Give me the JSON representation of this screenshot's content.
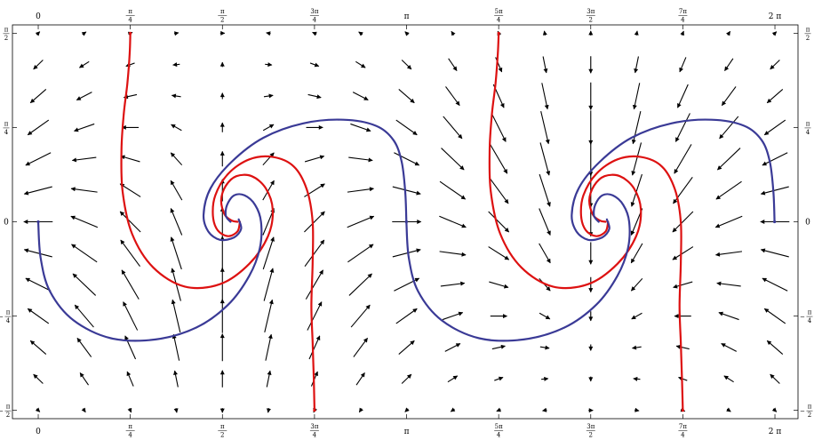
{
  "chart_data": {
    "type": "vector-field-streamplot",
    "title": "",
    "xlabel": "",
    "ylabel": "",
    "xlim": [
      -0.22,
      6.48
    ],
    "ylim": [
      -1.64,
      1.64
    ],
    "grid": false,
    "frame": "box-with-ticks-all-sides",
    "x_ticks": [
      {
        "value": 0,
        "num": "0",
        "den": ""
      },
      {
        "value": 0.7854,
        "num": "π",
        "den": "4"
      },
      {
        "value": 1.5708,
        "num": "π",
        "den": "2"
      },
      {
        "value": 2.3562,
        "num": "3π",
        "den": "4"
      },
      {
        "value": 3.1416,
        "num": "π",
        "den": ""
      },
      {
        "value": 3.927,
        "num": "5π",
        "den": "4"
      },
      {
        "value": 4.7124,
        "num": "3π",
        "den": "2"
      },
      {
        "value": 5.4978,
        "num": "7π",
        "den": "4"
      },
      {
        "value": 6.2832,
        "num": "2 π",
        "den": ""
      }
    ],
    "y_ticks": [
      {
        "value": 1.5708,
        "num": "π",
        "den": "2",
        "sign": ""
      },
      {
        "value": 0.7854,
        "num": "π",
        "den": "4",
        "sign": ""
      },
      {
        "value": 0,
        "num": "0",
        "den": "",
        "sign": ""
      },
      {
        "value": -0.7854,
        "num": "π",
        "den": "4",
        "sign": "−"
      },
      {
        "value": -1.5708,
        "num": "π",
        "den": "2",
        "sign": "−"
      }
    ],
    "field": {
      "x_start": 0,
      "x_step": 0.3927,
      "x_count": 17,
      "y_start": -1.5708,
      "y_step": 0.2618,
      "y_count": 13,
      "arrow_color": "#000000"
    },
    "curves": [
      {
        "color": "#dd1111",
        "points": [
          [
            0.7854,
            1.5708
          ],
          [
            0.78,
            1.4
          ],
          [
            0.76,
            1.15
          ],
          [
            0.73,
            0.9
          ],
          [
            0.71,
            0.6
          ],
          [
            0.72,
            0.25
          ],
          [
            0.8,
            -0.1
          ],
          [
            0.98,
            -0.38
          ],
          [
            1.25,
            -0.54
          ],
          [
            1.55,
            -0.52
          ],
          [
            1.8,
            -0.35
          ],
          [
            1.96,
            -0.12
          ],
          [
            2.0,
            0.1
          ],
          [
            1.94,
            0.28
          ],
          [
            1.82,
            0.38
          ],
          [
            1.69,
            0.38
          ],
          [
            1.6,
            0.3
          ],
          [
            1.56,
            0.18
          ],
          [
            1.59,
            0.06
          ],
          [
            1.65,
            0.01
          ],
          [
            1.7,
            0.0
          ]
        ]
      },
      {
        "color": "#dd1111",
        "points": [
          [
            2.3562,
            -1.5708
          ],
          [
            2.35,
            -1.3
          ],
          [
            2.34,
            -1.0
          ],
          [
            2.33,
            -0.7
          ],
          [
            2.34,
            -0.35
          ],
          [
            2.34,
            0.0
          ],
          [
            2.29,
            0.27
          ],
          [
            2.18,
            0.46
          ],
          [
            2.0,
            0.54
          ],
          [
            1.8,
            0.52
          ],
          [
            1.62,
            0.4
          ],
          [
            1.51,
            0.22
          ],
          [
            1.49,
            0.05
          ],
          [
            1.53,
            -0.07
          ],
          [
            1.62,
            -0.12
          ],
          [
            1.7,
            -0.08
          ],
          [
            1.72,
            0.0
          ]
        ]
      },
      {
        "color": "#dd1111",
        "points": [
          [
            3.927,
            1.5708
          ],
          [
            3.92,
            1.4
          ],
          [
            3.9,
            1.15
          ],
          [
            3.87,
            0.9
          ],
          [
            3.85,
            0.6
          ],
          [
            3.86,
            0.25
          ],
          [
            3.94,
            -0.1
          ],
          [
            4.12,
            -0.38
          ],
          [
            4.39,
            -0.54
          ],
          [
            4.69,
            -0.52
          ],
          [
            4.94,
            -0.35
          ],
          [
            5.1,
            -0.12
          ],
          [
            5.14,
            0.1
          ],
          [
            5.08,
            0.28
          ],
          [
            4.96,
            0.38
          ],
          [
            4.83,
            0.38
          ],
          [
            4.74,
            0.3
          ],
          [
            4.7,
            0.18
          ],
          [
            4.73,
            0.06
          ],
          [
            4.79,
            0.01
          ],
          [
            4.84,
            0.0
          ]
        ]
      },
      {
        "color": "#dd1111",
        "points": [
          [
            5.4978,
            -1.5708
          ],
          [
            5.49,
            -1.3
          ],
          [
            5.48,
            -1.0
          ],
          [
            5.47,
            -0.7
          ],
          [
            5.48,
            -0.35
          ],
          [
            5.48,
            0.0
          ],
          [
            5.43,
            0.27
          ],
          [
            5.32,
            0.46
          ],
          [
            5.14,
            0.54
          ],
          [
            4.94,
            0.52
          ],
          [
            4.76,
            0.4
          ],
          [
            4.65,
            0.22
          ],
          [
            4.63,
            0.05
          ],
          [
            4.67,
            -0.07
          ],
          [
            4.76,
            -0.12
          ],
          [
            4.84,
            -0.08
          ],
          [
            4.86,
            0.0
          ]
        ]
      },
      {
        "color": "#3a3a96",
        "points": [
          [
            0.0,
            0.0
          ],
          [
            0.02,
            -0.3
          ],
          [
            0.1,
            -0.58
          ],
          [
            0.3,
            -0.82
          ],
          [
            0.62,
            -0.97
          ],
          [
            1.0,
            -0.98
          ],
          [
            1.35,
            -0.88
          ],
          [
            1.62,
            -0.69
          ],
          [
            1.8,
            -0.45
          ],
          [
            1.89,
            -0.22
          ],
          [
            1.9,
            0.0
          ],
          [
            1.85,
            0.14
          ],
          [
            1.76,
            0.22
          ],
          [
            1.67,
            0.22
          ],
          [
            1.61,
            0.14
          ],
          [
            1.6,
            0.05
          ],
          [
            1.64,
            0.0
          ]
        ]
      },
      {
        "color": "#3a3a96",
        "points": [
          [
            3.14,
            0.0
          ],
          [
            3.13,
            0.25
          ],
          [
            3.1,
            0.5
          ],
          [
            3.03,
            0.68
          ],
          [
            2.88,
            0.8
          ],
          [
            2.6,
            0.85
          ],
          [
            2.26,
            0.82
          ],
          [
            1.92,
            0.7
          ],
          [
            1.65,
            0.5
          ],
          [
            1.47,
            0.28
          ],
          [
            1.41,
            0.06
          ],
          [
            1.45,
            -0.08
          ],
          [
            1.55,
            -0.15
          ],
          [
            1.67,
            -0.13
          ],
          [
            1.73,
            -0.06
          ],
          [
            1.71,
            0.02
          ]
        ]
      },
      {
        "color": "#3a3a96",
        "points": [
          [
            3.14,
            0.0
          ],
          [
            3.16,
            -0.3
          ],
          [
            3.24,
            -0.58
          ],
          [
            3.44,
            -0.82
          ],
          [
            3.76,
            -0.97
          ],
          [
            4.14,
            -0.98
          ],
          [
            4.49,
            -0.88
          ],
          [
            4.76,
            -0.69
          ],
          [
            4.94,
            -0.45
          ],
          [
            5.03,
            -0.22
          ],
          [
            5.04,
            0.0
          ],
          [
            4.99,
            0.14
          ],
          [
            4.9,
            0.22
          ],
          [
            4.81,
            0.22
          ],
          [
            4.75,
            0.14
          ],
          [
            4.74,
            0.05
          ],
          [
            4.78,
            0.0
          ]
        ]
      },
      {
        "color": "#3a3a96",
        "points": [
          [
            6.28,
            0.0
          ],
          [
            6.27,
            0.25
          ],
          [
            6.24,
            0.5
          ],
          [
            6.17,
            0.68
          ],
          [
            6.02,
            0.8
          ],
          [
            5.74,
            0.85
          ],
          [
            5.4,
            0.82
          ],
          [
            5.06,
            0.7
          ],
          [
            4.79,
            0.5
          ],
          [
            4.61,
            0.28
          ],
          [
            4.55,
            0.06
          ],
          [
            4.59,
            -0.08
          ],
          [
            4.69,
            -0.15
          ],
          [
            4.81,
            -0.13
          ],
          [
            4.87,
            -0.06
          ],
          [
            4.85,
            0.02
          ]
        ]
      }
    ]
  }
}
